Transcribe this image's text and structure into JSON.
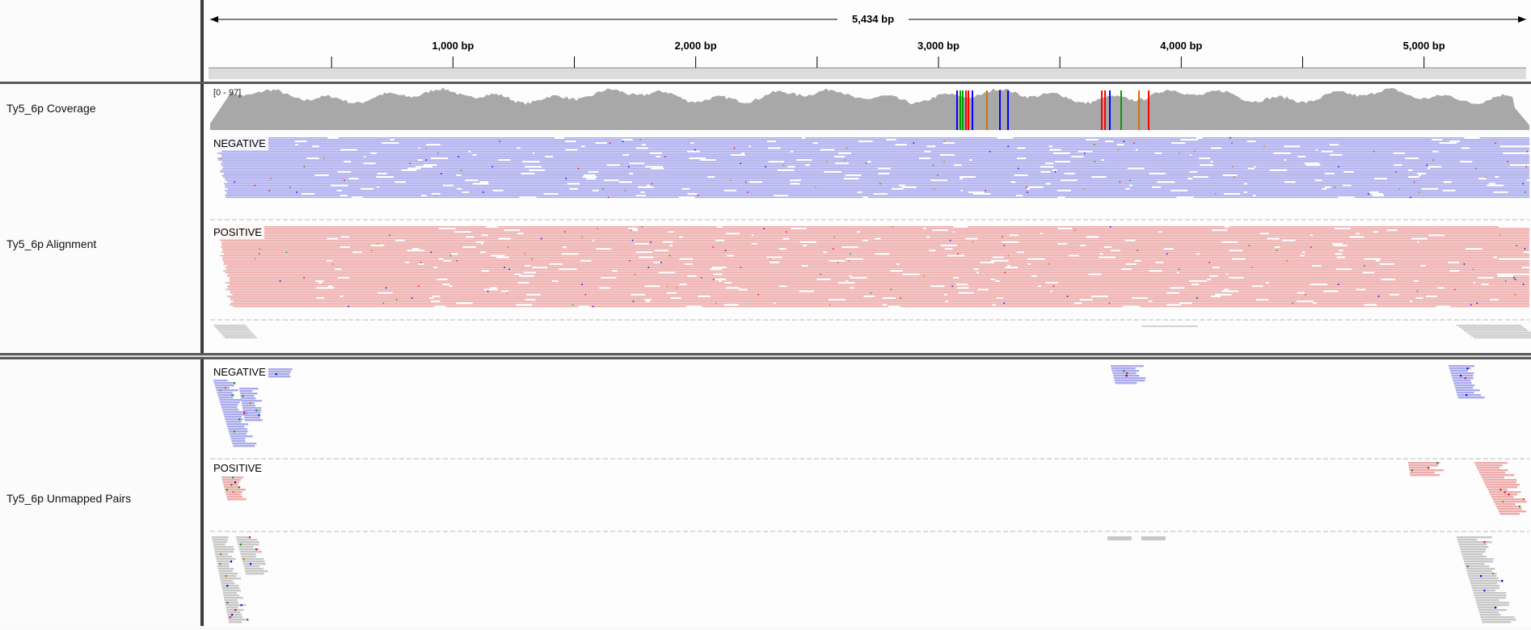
{
  "ruler": {
    "span_label": "5,434 bp",
    "ticks": [
      {
        "bp": 1000,
        "label": "1,000 bp"
      },
      {
        "bp": 2000,
        "label": "2,000 bp"
      },
      {
        "bp": 3000,
        "label": "3,000 bp"
      },
      {
        "bp": 4000,
        "label": "4,000 bp"
      },
      {
        "bp": 5000,
        "label": "5,000 bp"
      }
    ],
    "minor_ticks_bp": [
      500,
      1500,
      2500,
      3500,
      4500
    ],
    "genome_length_bp": 5434
  },
  "tracks": {
    "coverage": {
      "name": "Ty5_6p Coverage",
      "range_label": "[0 - 97]",
      "fill_color": "#a8a8a8"
    },
    "alignment": {
      "name": "Ty5_6p Alignment",
      "negative_label": "NEGATIVE",
      "positive_label": "POSITIVE",
      "negative_color": "#aaaaee",
      "positive_color": "#eeaaaa"
    },
    "unmapped": {
      "name": "Ty5_6p Unmapped Pairs",
      "negative_label": "NEGATIVE",
      "positive_label": "POSITIVE",
      "unpaired_color": "#c8c8c8"
    }
  },
  "colors": {
    "separator": "#5a5a5a",
    "mismatch_A": "#00a000",
    "mismatch_C": "#0000ff",
    "mismatch_G": "#d17105",
    "mismatch_T": "#ff0000"
  }
}
